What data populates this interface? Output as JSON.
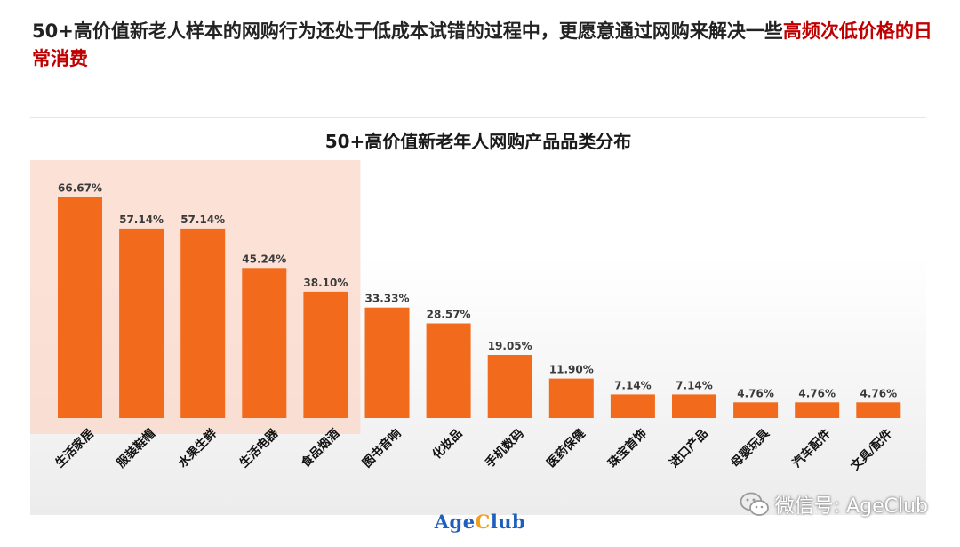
{
  "headline": {
    "main": "50+高价值新老人样本的网购行为还处于低成本试错的过程中，更愿意通过网购来解决一些",
    "highlight": "高频次低价格的日常消费"
  },
  "chart_data": {
    "type": "bar",
    "title": "50+高价值新老年人网购产品品类分布",
    "categories": [
      "生活家居",
      "服装鞋帽",
      "水果生鲜",
      "生活电器",
      "食品烟酒",
      "图书音响",
      "化妆品",
      "手机数码",
      "医药保健",
      "珠宝首饰",
      "进口产品",
      "母婴玩具",
      "汽车配件",
      "文具/配件"
    ],
    "values": [
      66.67,
      57.14,
      57.14,
      45.24,
      38.1,
      33.33,
      28.57,
      19.05,
      11.9,
      7.14,
      7.14,
      4.76,
      4.76,
      4.76
    ],
    "value_labels": [
      "66.67%",
      "57.14%",
      "57.14%",
      "45.24%",
      "38.10%",
      "33.33%",
      "28.57%",
      "19.05%",
      "11.90%",
      "7.14%",
      "7.14%",
      "4.76%",
      "4.76%",
      "4.76%"
    ],
    "ylim": [
      0,
      70
    ],
    "grid": false,
    "highlighted_categories": 5,
    "colors": {
      "bar": "#f26b1d",
      "highlight_box": "#fad7c8"
    }
  },
  "brand": {
    "part1": "Age",
    "part2": "C",
    "part3": "lub"
  },
  "watermark": {
    "text": "微信号: AgeClub",
    "icon": "wechat-icon"
  }
}
